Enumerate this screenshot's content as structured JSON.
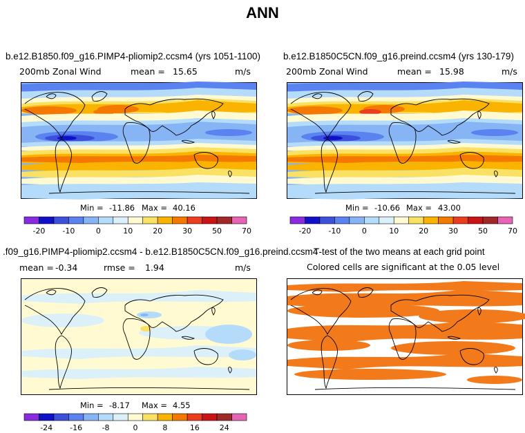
{
  "title": "ANN",
  "chart_data": [
    {
      "type": "heatmap",
      "title": "b.e12.B1850.f09_g16.PIMP4-pliomip2.ccsm4 (yrs 1051-1100)",
      "variable": "200mb Zonal Wind",
      "mean_label": "mean =",
      "mean": "15.65",
      "units": "m/s",
      "min_label": "Min =",
      "min": "-11.86",
      "max_label": "Max =",
      "max": "40.16",
      "colorbar_ticks": [
        "-20",
        "-10",
        "0",
        "10",
        "20",
        "30",
        "50",
        "70"
      ],
      "colorbar_colors": [
        "#8a2be2",
        "#1010c8",
        "#3c50dc",
        "#5a82f0",
        "#87b4f5",
        "#b4dcfa",
        "#dcf0fa",
        "#fffad2",
        "#fae164",
        "#fab400",
        "#f57800",
        "#eb3c1e",
        "#c81414",
        "#a02828",
        "#e664b4"
      ]
    },
    {
      "type": "heatmap",
      "title": "b.e12.B1850C5CN.f09_g16.preind.ccsm4 (yrs 130-179)",
      "variable": "200mb Zonal Wind",
      "mean_label": "mean =",
      "mean": "15.98",
      "units": "m/s",
      "min_label": "Min =",
      "min": "-10.66",
      "max_label": "Max =",
      "max": "43.00",
      "colorbar_ticks": [
        "-20",
        "-10",
        "0",
        "10",
        "20",
        "30",
        "50",
        "70"
      ],
      "colorbar_colors": [
        "#8a2be2",
        "#1010c8",
        "#3c50dc",
        "#5a82f0",
        "#87b4f5",
        "#b4dcfa",
        "#dcf0fa",
        "#fffad2",
        "#fae164",
        "#fab400",
        "#f57800",
        "#eb3c1e",
        "#c81414",
        "#a02828",
        "#e664b4"
      ]
    },
    {
      "type": "heatmap",
      "title": ".f09_g16.PIMP4-pliomip2.ccsm4 - b.e12.B1850C5CN.f09_g16.preind.ccsm4",
      "mean_label": "mean =",
      "mean": "-0.34",
      "rmse_label": "rmse =",
      "rmse": "1.94",
      "units": "m/s",
      "min_label": "Min =",
      "min": "-8.17",
      "max_label": "Max =",
      "max": "4.55",
      "colorbar_ticks": [
        "-24",
        "-16",
        "-8",
        "0",
        "8",
        "16",
        "24"
      ],
      "colorbar_colors": [
        "#8a2be2",
        "#1010c8",
        "#3c50dc",
        "#5a82f0",
        "#87b4f5",
        "#b4dcfa",
        "#dcf0fa",
        "#fffad2",
        "#fae164",
        "#fab400",
        "#f57800",
        "#eb3c1e",
        "#c81414",
        "#a02828",
        "#e664b4"
      ]
    },
    {
      "type": "heatmap",
      "title": "T-test of the two means at each grid point",
      "subtitle": "Colored cells are significant at the 0.05 level",
      "significant_color": "#f27a1a"
    }
  ]
}
